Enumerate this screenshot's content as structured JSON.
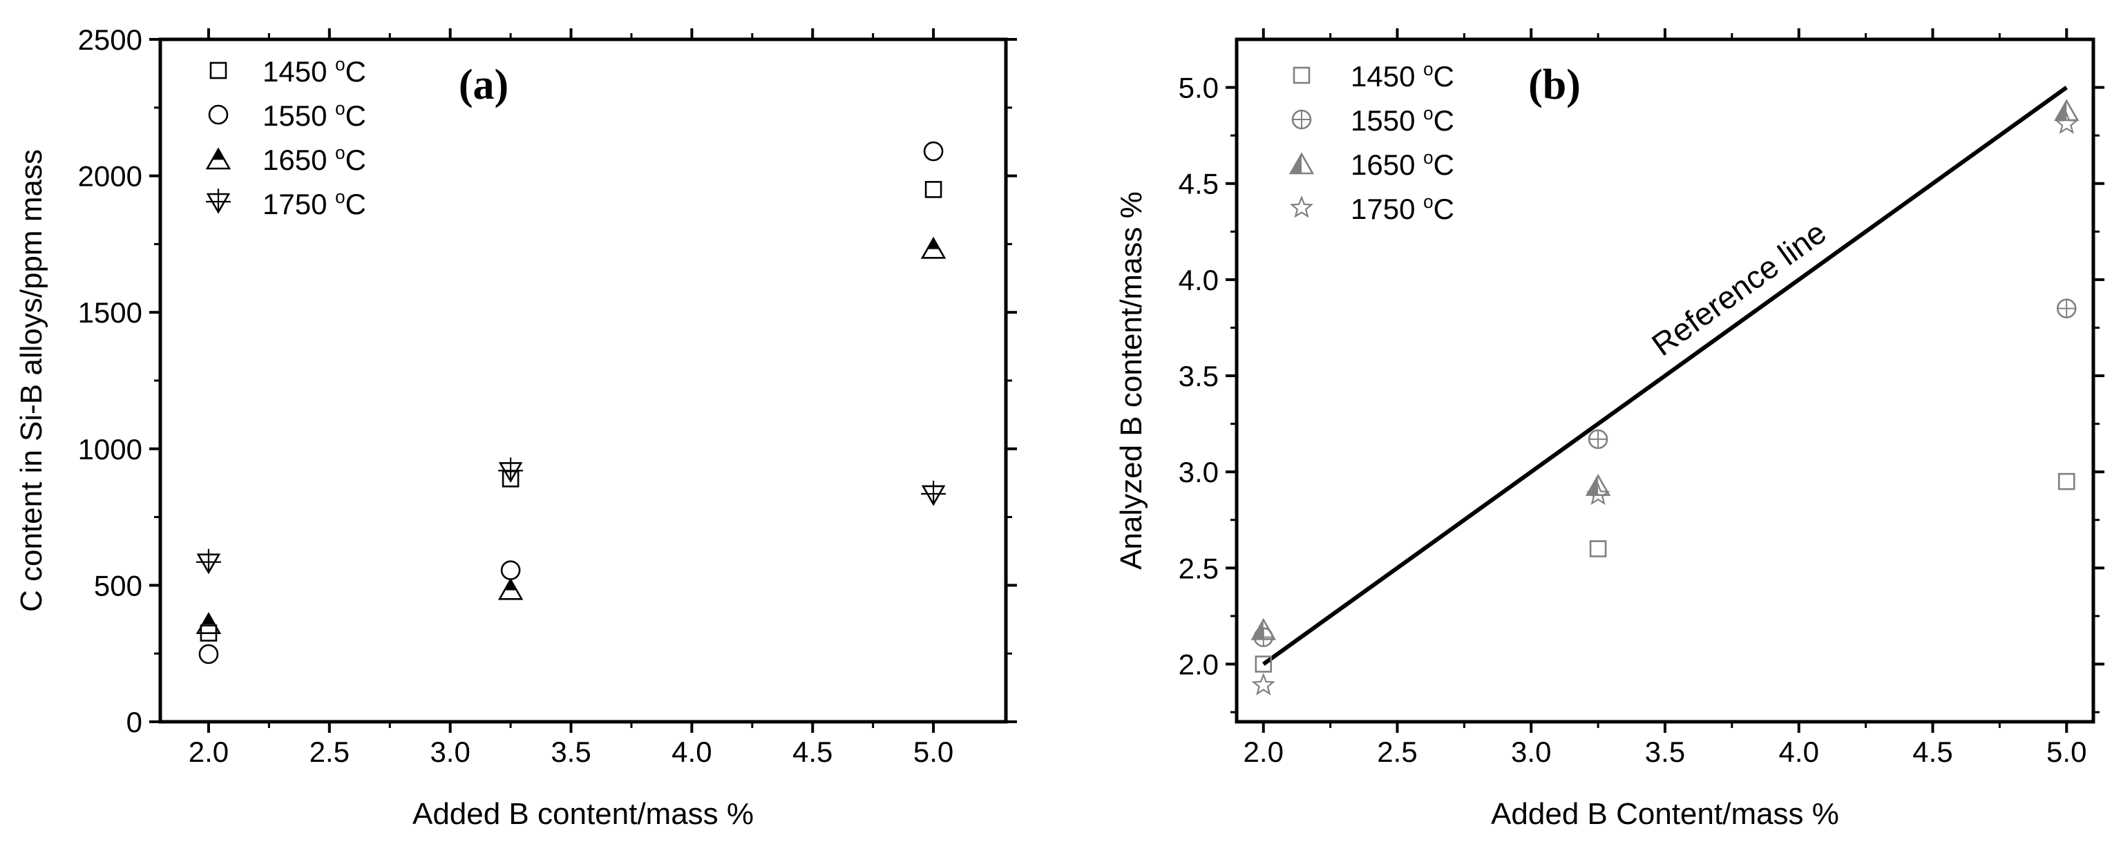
{
  "colors": {
    "panel_a": "#000000",
    "panel_b_markers": "#808080",
    "panel_b_line": "#000000"
  },
  "chart_data": [
    {
      "type": "scatter",
      "panel_label": "(a)",
      "xlabel": "Added B content/mass %",
      "ylabel": "C content in Si-B alloys/ppm mass",
      "xlim": [
        1.8,
        5.3
      ],
      "ylim": [
        0,
        2500
      ],
      "xticks": [
        2.0,
        2.5,
        3.0,
        3.5,
        4.0,
        4.5,
        5.0
      ],
      "xtick_labels": [
        "2.0",
        "2.5",
        "3.0",
        "3.5",
        "4.0",
        "4.5",
        "5.0"
      ],
      "yticks": [
        0,
        500,
        1000,
        1500,
        2000,
        2500
      ],
      "ytick_labels": [
        "0",
        "500",
        "1000",
        "1500",
        "2000",
        "2500"
      ],
      "legend_placement": "top-left",
      "grid": false,
      "series": [
        {
          "name": "1450 ºC",
          "marker": "square-open",
          "x": [
            2.0,
            3.25,
            5.0
          ],
          "y": [
            325,
            890,
            1950
          ]
        },
        {
          "name": "1550 ºC",
          "marker": "circle-open",
          "x": [
            2.0,
            3.25,
            5.0
          ],
          "y": [
            248,
            555,
            2090
          ]
        },
        {
          "name": "1650 ºC",
          "marker": "triangle-half-filled",
          "x": [
            2.0,
            3.25,
            5.0
          ],
          "y": [
            360,
            485,
            1735
          ]
        },
        {
          "name": "1750 ºC",
          "marker": "inverted-triangle-cross",
          "x": [
            2.0,
            3.25,
            5.0
          ],
          "y": [
            580,
            915,
            830
          ]
        }
      ]
    },
    {
      "type": "scatter",
      "panel_label": "(b)",
      "xlabel": "Added B Content/mass %",
      "ylabel": "Analyzed B content/mass %",
      "xlim": [
        1.9,
        5.1
      ],
      "ylim": [
        1.7,
        5.25
      ],
      "xticks": [
        2.0,
        2.5,
        3.0,
        3.5,
        4.0,
        4.5,
        5.0
      ],
      "xtick_labels": [
        "2.0",
        "2.5",
        "3.0",
        "3.5",
        "4.0",
        "4.5",
        "5.0"
      ],
      "yticks": [
        2.0,
        2.5,
        3.0,
        3.5,
        4.0,
        4.5,
        5.0
      ],
      "ytick_labels": [
        "2.0",
        "2.5",
        "3.0",
        "3.5",
        "4.0",
        "4.5",
        "5.0"
      ],
      "legend_placement": "top-left",
      "grid": false,
      "reference_line": {
        "label": "Reference line",
        "x": [
          2.0,
          5.0
        ],
        "y": [
          2.0,
          5.0
        ]
      },
      "series": [
        {
          "name": "1450 ºC",
          "marker": "square-open",
          "x": [
            2.0,
            3.25,
            5.0
          ],
          "y": [
            2.0,
            2.6,
            2.95
          ]
        },
        {
          "name": "1550 ºC",
          "marker": "circle-cross",
          "x": [
            2.0,
            3.25,
            5.0
          ],
          "y": [
            2.14,
            3.17,
            3.85
          ]
        },
        {
          "name": "1650 ºC",
          "marker": "triangle-half-filled",
          "x": [
            2.0,
            3.25,
            5.0
          ],
          "y": [
            2.18,
            2.93,
            4.88
          ]
        },
        {
          "name": "1750 ºC",
          "marker": "star-open",
          "x": [
            2.0,
            3.25,
            5.0
          ],
          "y": [
            1.89,
            2.88,
            4.81
          ]
        }
      ]
    }
  ]
}
